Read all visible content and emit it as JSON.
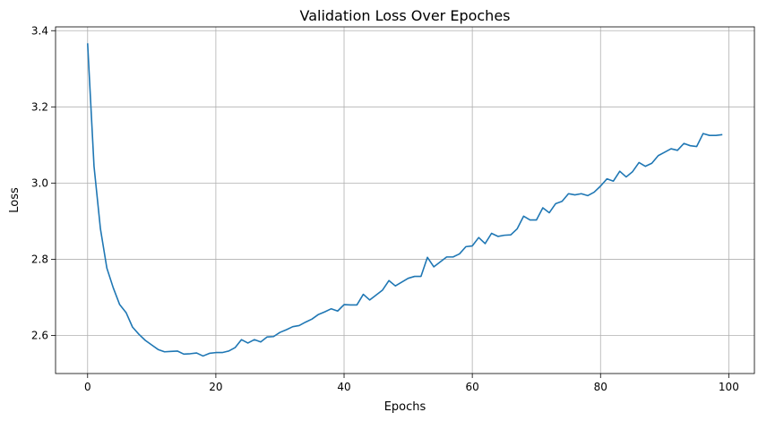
{
  "chart_data": {
    "type": "line",
    "title": "Validation Loss Over Epoches",
    "xlabel": "Epochs",
    "ylabel": "Loss",
    "xlim": [
      -5,
      104
    ],
    "ylim": [
      2.5,
      3.41
    ],
    "xticks": [
      0,
      20,
      40,
      60,
      80,
      100
    ],
    "xtick_labels": [
      "0",
      "20",
      "40",
      "60",
      "80",
      "100"
    ],
    "yticks": [
      2.6,
      2.8,
      3.0,
      3.2,
      3.4
    ],
    "ytick_labels": [
      "2.6",
      "2.8",
      "3.0",
      "3.2",
      "3.4"
    ],
    "grid": true,
    "line_color": "#1f77b4",
    "x": [
      0,
      1,
      2,
      3,
      4,
      5,
      6,
      7,
      8,
      9,
      10,
      11,
      12,
      13,
      14,
      15,
      16,
      17,
      18,
      19,
      20,
      21,
      22,
      23,
      24,
      25,
      26,
      27,
      28,
      29,
      30,
      31,
      32,
      33,
      34,
      35,
      36,
      37,
      38,
      39,
      40,
      41,
      42,
      43,
      44,
      45,
      46,
      47,
      48,
      49,
      50,
      51,
      52,
      53,
      54,
      55,
      56,
      57,
      58,
      59,
      60,
      61,
      62,
      63,
      64,
      65,
      66,
      67,
      68,
      69,
      70,
      71,
      72,
      73,
      74,
      75,
      76,
      77,
      78,
      79,
      80,
      81,
      82,
      83,
      84,
      85,
      86,
      87,
      88,
      89,
      90,
      91,
      92,
      93,
      94,
      95,
      96,
      97,
      98,
      99
    ],
    "y": [
      3.367,
      3.044,
      2.88,
      2.777,
      2.725,
      2.681,
      2.66,
      2.622,
      2.603,
      2.587,
      2.575,
      2.563,
      2.557,
      2.558,
      2.559,
      2.551,
      2.552,
      2.554,
      2.546,
      2.553,
      2.555,
      2.555,
      2.559,
      2.568,
      2.589,
      2.58,
      2.589,
      2.583,
      2.596,
      2.597,
      2.608,
      2.615,
      2.623,
      2.626,
      2.635,
      2.643,
      2.655,
      2.662,
      2.67,
      2.664,
      2.681,
      2.68,
      2.68,
      2.708,
      2.693,
      2.706,
      2.719,
      2.744,
      2.73,
      2.74,
      2.75,
      2.755,
      2.755,
      2.805,
      2.78,
      2.793,
      2.806,
      2.806,
      2.814,
      2.833,
      2.835,
      2.857,
      2.841,
      2.868,
      2.86,
      2.863,
      2.864,
      2.88,
      2.913,
      2.903,
      2.903,
      2.935,
      2.922,
      2.946,
      2.952,
      2.972,
      2.969,
      2.972,
      2.967,
      2.976,
      2.992,
      3.011,
      3.005,
      3.031,
      3.016,
      3.03,
      3.054,
      3.044,
      3.052,
      3.072,
      3.081,
      3.09,
      3.086,
      3.104,
      3.098,
      3.096,
      3.13,
      3.125,
      3.125,
      3.127
    ]
  }
}
